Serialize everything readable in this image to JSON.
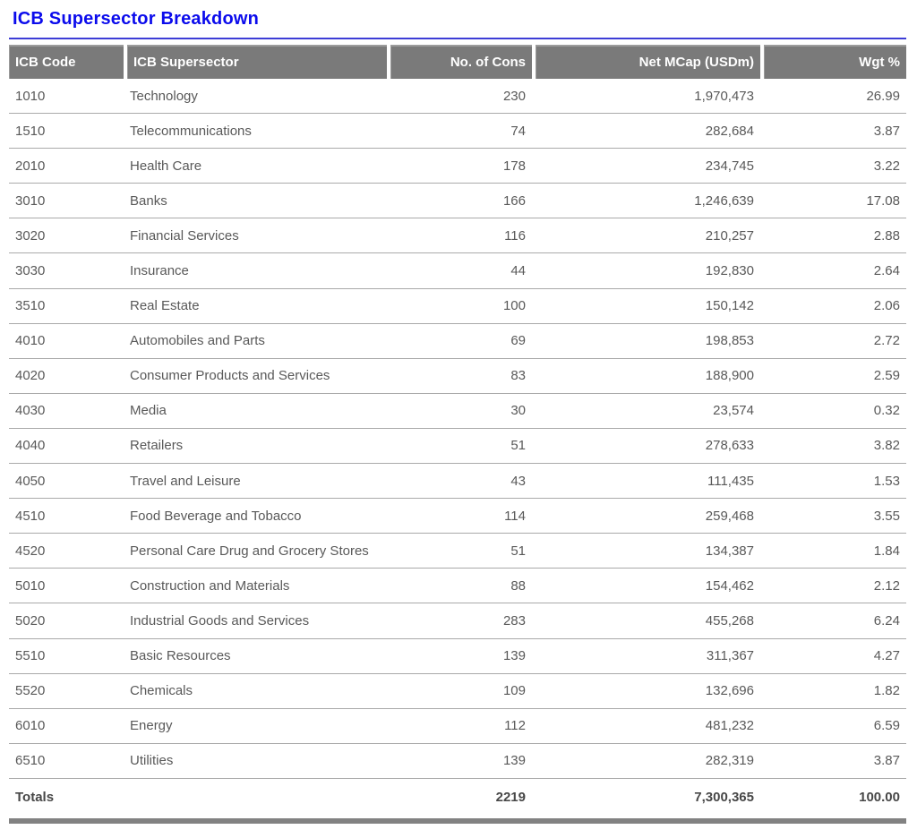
{
  "page": {
    "title": "ICB Supersector Breakdown"
  },
  "table": {
    "columns": [
      {
        "label": "ICB Code",
        "align": "left"
      },
      {
        "label": "ICB Supersector",
        "align": "left"
      },
      {
        "label": "No. of Cons",
        "align": "right"
      },
      {
        "label": "Net MCap (USDm)",
        "align": "right"
      },
      {
        "label": "Wgt %",
        "align": "right"
      }
    ],
    "rows": [
      [
        "1010",
        "Technology",
        "230",
        "1,970,473",
        "26.99"
      ],
      [
        "1510",
        "Telecommunications",
        "74",
        "282,684",
        "3.87"
      ],
      [
        "2010",
        "Health Care",
        "178",
        "234,745",
        "3.22"
      ],
      [
        "3010",
        "Banks",
        "166",
        "1,246,639",
        "17.08"
      ],
      [
        "3020",
        "Financial Services",
        "116",
        "210,257",
        "2.88"
      ],
      [
        "3030",
        "Insurance",
        "44",
        "192,830",
        "2.64"
      ],
      [
        "3510",
        "Real Estate",
        "100",
        "150,142",
        "2.06"
      ],
      [
        "4010",
        "Automobiles and Parts",
        "69",
        "198,853",
        "2.72"
      ],
      [
        "4020",
        "Consumer Products and Services",
        "83",
        "188,900",
        "2.59"
      ],
      [
        "4030",
        "Media",
        "30",
        "23,574",
        "0.32"
      ],
      [
        "4040",
        "Retailers",
        "51",
        "278,633",
        "3.82"
      ],
      [
        "4050",
        "Travel and Leisure",
        "43",
        "111,435",
        "1.53"
      ],
      [
        "4510",
        "Food Beverage and Tobacco",
        "114",
        "259,468",
        "3.55"
      ],
      [
        "4520",
        "Personal Care Drug and Grocery Stores",
        "51",
        "134,387",
        "1.84"
      ],
      [
        "5010",
        "Construction and Materials",
        "88",
        "154,462",
        "2.12"
      ],
      [
        "5020",
        "Industrial Goods and Services",
        "283",
        "455,268",
        "6.24"
      ],
      [
        "5510",
        "Basic Resources",
        "139",
        "311,367",
        "4.27"
      ],
      [
        "5520",
        "Chemicals",
        "109",
        "132,696",
        "1.82"
      ],
      [
        "6010",
        "Energy",
        "112",
        "481,232",
        "6.59"
      ],
      [
        "6510",
        "Utilities",
        "139",
        "282,319",
        "3.87"
      ]
    ],
    "totals": {
      "label": "Totals",
      "cons": "2219",
      "mcap": "7,300,365",
      "wgt": "100.00"
    }
  },
  "colors": {
    "title_blue": "#0b0bec",
    "rule_blue": "#3d3dd6",
    "header_bg": "#7a7a7a",
    "header_text": "#ffffff",
    "cell_text": "#595959",
    "divider": "#a9a9a9",
    "bottom_bar": "#828282"
  }
}
